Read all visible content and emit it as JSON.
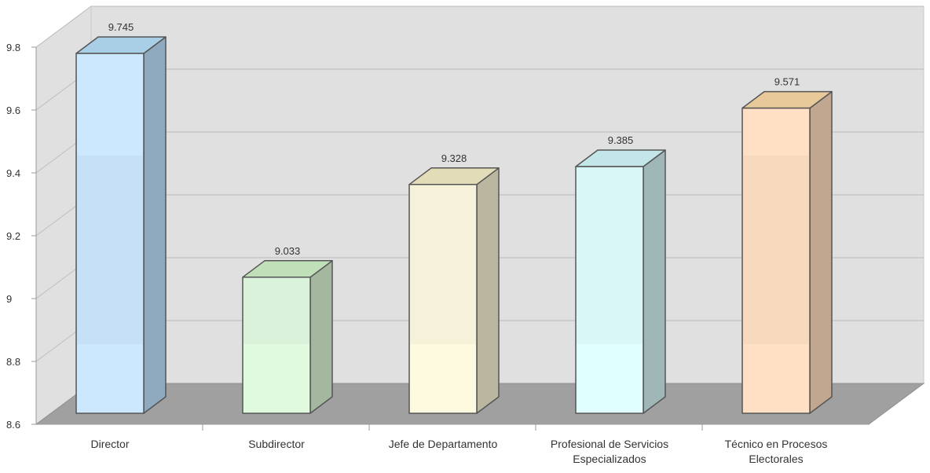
{
  "chart_data": {
    "type": "bar",
    "categories": [
      [
        "Director"
      ],
      [
        "Subdirector"
      ],
      [
        "Jefe de Departamento"
      ],
      [
        "Profesional de Servicios",
        "Especializados"
      ],
      [
        "Técnico en Procesos",
        "Electorales"
      ]
    ],
    "values": [
      9.745,
      9.033,
      9.328,
      9.385,
      9.571
    ],
    "value_labels": [
      "9.745",
      "9.033",
      "9.328",
      "9.385",
      "9.571"
    ],
    "ylim": [
      8.6,
      9.8
    ],
    "yticks": [
      "8.6",
      "8.8",
      "9",
      "9.2",
      "9.4",
      "9.6",
      "9.8"
    ],
    "grid": true,
    "legend": "none",
    "style": "3d",
    "colors": {
      "front": [
        "#cce8ff",
        "#e0fae0",
        "#fdfae0",
        "#e0ffff",
        "#ffe0c4"
      ],
      "top": [
        "#a9cfe6",
        "#bfe0b8",
        "#e2ddb8",
        "#c3e6e8",
        "#e8c99a"
      ],
      "side": [
        "#8fa9be",
        "#a3b89f",
        "#bab6a0",
        "#a0b7b7",
        "#c1a78f"
      ],
      "wall": "#e0e0e0",
      "floor": "#a0a0a0"
    }
  }
}
